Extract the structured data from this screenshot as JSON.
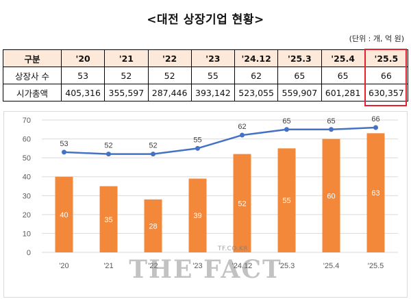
{
  "title": "<대전 상장기업 현황>",
  "unit_note": "(단위 : 개, 억 원)",
  "table": {
    "header_label": "구분",
    "columns": [
      "'20",
      "'21",
      "'22",
      "'23",
      "'24.12",
      "'25.3",
      "'25.4",
      "'25.5"
    ],
    "rows": [
      {
        "label": "상장사 수",
        "values": [
          "53",
          "52",
          "52",
          "55",
          "62",
          "65",
          "65",
          "66"
        ]
      },
      {
        "label": "시가총액",
        "values": [
          "405,316",
          "355,597",
          "287,446",
          "393,142",
          "523,055",
          "559,907",
          "601,281",
          "630,357"
        ]
      }
    ],
    "highlighted_column": "'25.5",
    "header_fill": "#fde9d9",
    "highlight_color": "#e8202e"
  },
  "chart_data": {
    "type": "bar+line",
    "categories": [
      "'20",
      "'21",
      "'22",
      "'23",
      "'24.12",
      "'25.3",
      "'25.4",
      "'25.5"
    ],
    "series": [
      {
        "kind": "bar",
        "values": [
          40,
          35,
          28,
          39,
          52,
          55,
          60,
          63
        ],
        "color": "#f4883a"
      },
      {
        "kind": "line",
        "values": [
          53,
          52,
          52,
          55,
          62,
          65,
          65,
          66
        ],
        "color": "#4472c4"
      }
    ],
    "ylim": [
      0,
      70
    ],
    "yticks": [
      0,
      10,
      20,
      30,
      40,
      50,
      60,
      70
    ],
    "grid": true
  },
  "watermark": {
    "main": "THE FACT",
    "small": "TF.CO.KR"
  }
}
